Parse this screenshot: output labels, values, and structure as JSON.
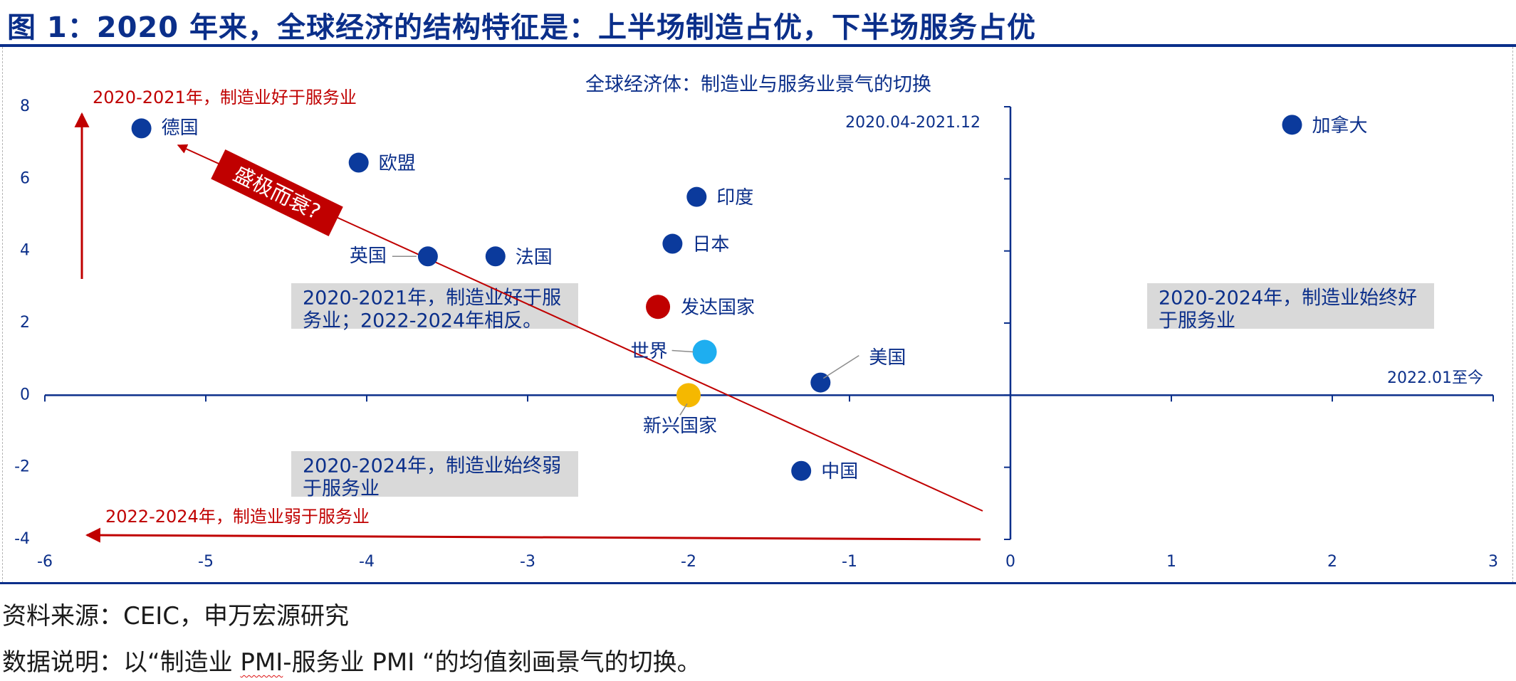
{
  "figure": {
    "title": "图 1：2020 年来，全球经济的结构特征是：上半场制造占优，下半场服务占优"
  },
  "colors": {
    "axis": "#0b2f8a",
    "point": "#0b3a9c",
    "developed": "#c00000",
    "world": "#1eaef0",
    "emerging": "#f5b800",
    "arrow": "#c00000",
    "box": "#d9d9d9",
    "text": "#0b2f8a"
  },
  "chart_data": {
    "type": "scatter",
    "title": "全球经济体：制造业与服务业景气的切换",
    "xlim": [
      -6,
      3
    ],
    "ylim": [
      -4,
      8
    ],
    "xticks": [
      "-6",
      "-5",
      "-4",
      "-3",
      "-2",
      "-1",
      "0",
      "1",
      "2",
      "3"
    ],
    "yticks": [
      "-4",
      "-2",
      "0",
      "2",
      "4",
      "6",
      "8"
    ],
    "axis_labels": {
      "y_axis": "2020.04-2021.12",
      "x_axis": "2022.01至今"
    },
    "points": [
      {
        "label": "德国",
        "x": -5.4,
        "y": 7.4,
        "color": "#0b3a9c"
      },
      {
        "label": "欧盟",
        "x": -4.05,
        "y": 6.45,
        "color": "#0b3a9c"
      },
      {
        "label": "印度",
        "x": -1.95,
        "y": 5.5,
        "color": "#0b3a9c"
      },
      {
        "label": "英国",
        "x": -3.62,
        "y": 3.85,
        "color": "#0b3a9c"
      },
      {
        "label": "法国",
        "x": -3.2,
        "y": 3.85,
        "color": "#0b3a9c"
      },
      {
        "label": "日本",
        "x": -2.1,
        "y": 4.2,
        "color": "#0b3a9c"
      },
      {
        "label": "发达国家",
        "x": -2.19,
        "y": 2.45,
        "color": "#c00000"
      },
      {
        "label": "世界",
        "x": -1.9,
        "y": 1.2,
        "color": "#1eaef0"
      },
      {
        "label": "美国",
        "x": -1.18,
        "y": 0.35,
        "color": "#0b3a9c"
      },
      {
        "label": "新兴国家",
        "x": -2.0,
        "y": 0.0,
        "color": "#f5b800"
      },
      {
        "label": "中国",
        "x": -1.3,
        "y": -2.1,
        "color": "#0b3a9c"
      },
      {
        "label": "加拿大",
        "x": 1.75,
        "y": 7.5,
        "color": "#0b3a9c"
      }
    ],
    "annotations": {
      "arrow_up": "2020-2021年，制造业好于服务业",
      "arrow_left": "2022-2024年，制造业弱于服务业",
      "trend_tag": "盛极而衰?",
      "box_upper_left": [
        "2020-2021年，制造业好于服",
        "务业；2022-2024年相反。"
      ],
      "box_lower_left": [
        "2020-2024年，制造业始终弱",
        "于服务业"
      ],
      "box_upper_right": [
        "2020-2024年，制造业始终好",
        "于服务业"
      ]
    }
  },
  "footer": {
    "source": "资料来源：CEIC，申万宏源研究",
    "note_prefix": "数据说明：以“制造业 ",
    "note_pmi1": "PMI",
    "note_mid": "-服务业 PMI “的均值刻画景气的切换。"
  }
}
